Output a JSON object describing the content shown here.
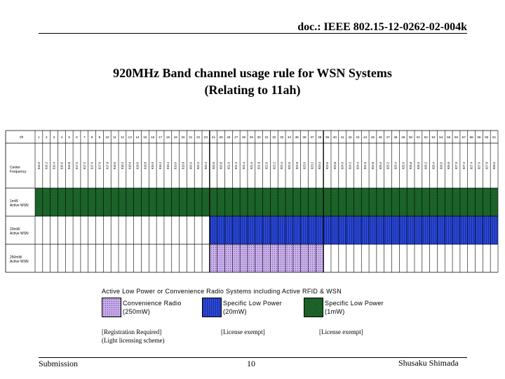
{
  "header": {
    "doc_id": "doc.: IEEE 802.15-12-0262-02-004k"
  },
  "title": {
    "line1": "920MHz Band channel usage rule for WSN Systems",
    "line2": "(Relating to 11ah)"
  },
  "table": {
    "row_labels": {
      "ch": "ch",
      "center_freq": [
        "Center",
        "Frequency"
      ],
      "r1": [
        "1mW",
        "Active WSN"
      ],
      "r2": [
        "20mW",
        "Active WSN"
      ],
      "r3": [
        "250mW",
        "Active WSN"
      ]
    },
    "channels": [
      "1",
      "2",
      "3",
      "4",
      "5",
      "6",
      "7",
      "8",
      "9",
      "10",
      "11",
      "12",
      "13",
      "14",
      "15",
      "16",
      "17",
      "18",
      "19",
      "20",
      "21",
      "22",
      "23",
      "24",
      "25",
      "26",
      "27",
      "28",
      "29",
      "30",
      "31",
      "32",
      "33",
      "34",
      "35",
      "36",
      "37",
      "38",
      "39",
      "40",
      "41",
      "42",
      "43",
      "44",
      "45",
      "46",
      "47",
      "48",
      "49",
      "50",
      "51",
      "52",
      "53",
      "54",
      "55",
      "56",
      "57",
      "58",
      "59",
      "60",
      "61"
    ],
    "frequencies": [
      "916.0",
      "916.2",
      "916.4",
      "916.6",
      "916.8",
      "917.0",
      "917.2",
      "917.4",
      "917.6",
      "917.8",
      "918.0",
      "918.2",
      "918.4",
      "918.6",
      "918.8",
      "919.0",
      "919.2",
      "919.4",
      "919.6",
      "919.8",
      "920.0",
      "920.2",
      "920.4",
      "920.6",
      "920.8",
      "921.0",
      "921.2",
      "921.4",
      "921.6",
      "921.8",
      "922.0",
      "922.2",
      "922.4",
      "922.6",
      "922.8",
      "923.0",
      "923.2",
      "923.4",
      "923.6",
      "923.8",
      "924.0",
      "924.2",
      "924.4",
      "924.6",
      "924.8",
      "925.0",
      "925.2",
      "925.4",
      "925.6",
      "925.8",
      "926.0",
      "926.2",
      "926.4",
      "926.6",
      "926.8",
      "927.0",
      "927.2",
      "927.4",
      "927.6",
      "927.8",
      "928.0"
    ],
    "usage": {
      "r1": {
        "from_channel": 1,
        "to_channel": 61,
        "color": "#1e6a2c"
      },
      "r2": {
        "from_channel": 24,
        "to_channel": 61,
        "color": "#2a48d6"
      },
      "r3": {
        "from_channel": 24,
        "to_channel": 38,
        "color": "#c9b2e8"
      }
    }
  },
  "legend": {
    "caption": "Active Low Power or Convenience Radio Systems including Active RFID & WSN",
    "items": [
      {
        "line1": "Convenience Radio",
        "line2": "(250mW)",
        "note_line1": "[Registration Required]",
        "note_line2": "(Light licensing scheme)",
        "color": "#c9b2e8"
      },
      {
        "line1": "Specific Low Power",
        "line2": "(20mW)",
        "note_line1": "[License exempt]",
        "color": "#2a48d6"
      },
      {
        "line1": "Specific Low Power",
        "line2": "(1mW)",
        "note_line1": "[License exempt]",
        "color": "#1e6a2c"
      }
    ]
  },
  "footer": {
    "left": "Submission",
    "page": "10",
    "author": "Shusaku Shimada"
  }
}
